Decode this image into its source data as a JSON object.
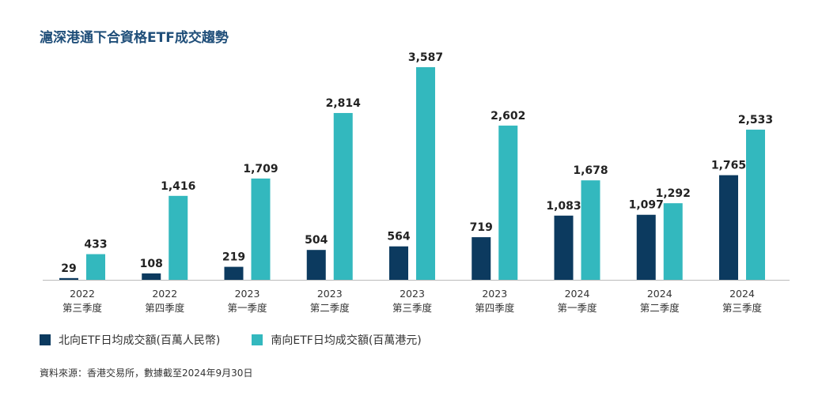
{
  "chart_data": {
    "type": "bar",
    "title": "滬深港通下合資格ETF成交趨勢",
    "categories": [
      [
        "2022",
        "第三季度"
      ],
      [
        "2022",
        "第四季度"
      ],
      [
        "2023",
        "第一季度"
      ],
      [
        "2023",
        "第二季度"
      ],
      [
        "2023",
        "第三季度"
      ],
      [
        "2023",
        "第四季度"
      ],
      [
        "2024",
        "第一季度"
      ],
      [
        "2024",
        "第二季度"
      ],
      [
        "2024",
        "第三季度"
      ]
    ],
    "series": [
      {
        "name": "北向ETF日均成交額(百萬人民幣)",
        "color": "#0c3a5f",
        "values": [
          29,
          108,
          219,
          504,
          564,
          719,
          1083,
          1097,
          1765
        ],
        "labels": [
          "29",
          "108",
          "219",
          "504",
          "564",
          "719",
          "1,083",
          "1,097",
          "1,765"
        ]
      },
      {
        "name": "南向ETF日均成交額(百萬港元)",
        "color": "#33b8be",
        "values": [
          433,
          1416,
          1709,
          2814,
          3587,
          2602,
          1678,
          1292,
          2533
        ],
        "labels": [
          "433",
          "1,416",
          "1,709",
          "2,814",
          "3,587",
          "2,602",
          "1,678",
          "1,292",
          "2,533"
        ]
      }
    ],
    "ylim": [
      0,
      3587
    ],
    "xlabel": "",
    "ylabel": "",
    "legend_position": "bottom-left",
    "axis_color": "#bbbbbb",
    "source": "資料來源：香港交易所，數據截至2024年9月30日"
  }
}
